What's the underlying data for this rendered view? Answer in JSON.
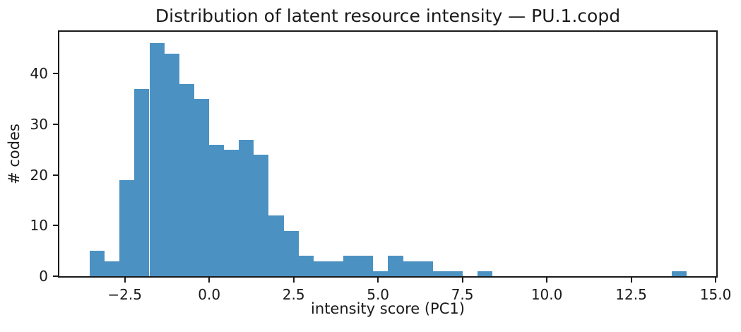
{
  "figure": {
    "title": "Distribution of latent resource intensity — PU.1.copd",
    "xlabel": "intensity score (PC1)",
    "ylabel": "# codes"
  },
  "chart_data": {
    "type": "bar",
    "subtype": "histogram",
    "title": "Distribution of latent resource intensity — PU.1.copd",
    "xlabel": "intensity score (PC1)",
    "ylabel": "# codes",
    "bin_edges": [
      -3.54,
      -3.098,
      -2.656,
      -2.214,
      -1.772,
      -1.33,
      -0.888,
      -0.446,
      -0.004,
      0.438,
      0.88,
      1.322,
      1.764,
      2.206,
      2.648,
      3.09,
      3.532,
      3.974,
      4.416,
      4.858,
      5.3,
      5.742,
      6.184,
      6.626,
      7.068,
      7.51,
      7.952,
      8.394,
      8.836,
      9.278,
      9.72,
      10.162,
      10.604,
      11.046,
      11.488,
      11.93,
      12.372,
      12.814,
      13.256,
      13.698,
      14.14
    ],
    "counts": [
      5,
      3,
      19,
      37,
      46,
      44,
      38,
      35,
      26,
      25,
      27,
      24,
      12,
      9,
      4,
      3,
      3,
      4,
      4,
      1,
      4,
      3,
      3,
      1,
      1,
      0,
      1,
      0,
      0,
      0,
      0,
      0,
      0,
      0,
      0,
      0,
      0,
      0,
      0,
      1
    ],
    "total_count": 383,
    "xlim": [
      -4.44,
      15.02
    ],
    "ylim": [
      0,
      48.3
    ],
    "xticks": [
      {
        "value": -2.5,
        "label": "−2.5"
      },
      {
        "value": 0.0,
        "label": "0.0"
      },
      {
        "value": 2.5,
        "label": "2.5"
      },
      {
        "value": 5.0,
        "label": "5.0"
      },
      {
        "value": 7.5,
        "label": "7.5"
      },
      {
        "value": 10.0,
        "label": "10.0"
      },
      {
        "value": 12.5,
        "label": "12.5"
      },
      {
        "value": 15.0,
        "label": "15.0"
      }
    ],
    "yticks": [
      {
        "value": 0,
        "label": "0"
      },
      {
        "value": 10,
        "label": "10"
      },
      {
        "value": 20,
        "label": "20"
      },
      {
        "value": 30,
        "label": "30"
      },
      {
        "value": 40,
        "label": "40"
      }
    ],
    "bar_color": "#4b92c3",
    "axis_color": "#1a1a1a",
    "grid": false,
    "legend": false
  }
}
